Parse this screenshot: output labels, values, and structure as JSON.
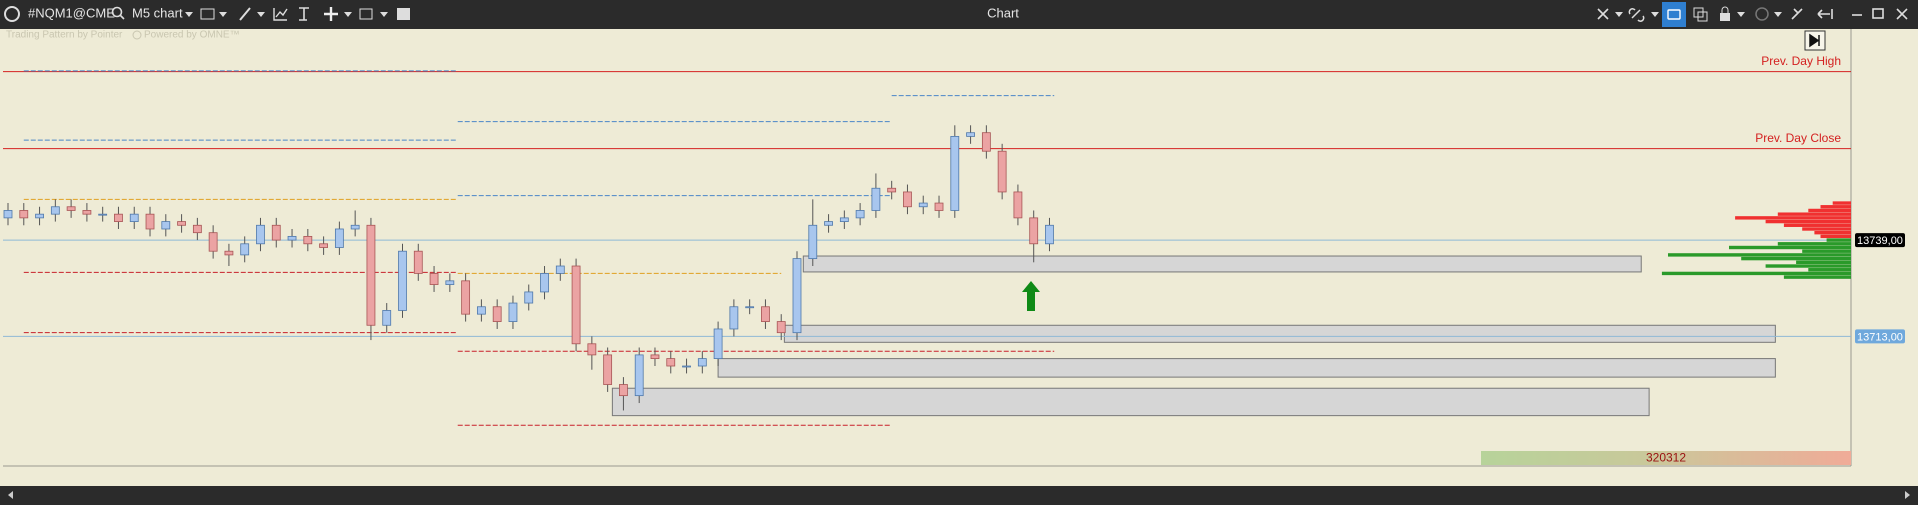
{
  "window": {
    "symbol": "#NQM1@CME",
    "timeframe": "M5 chart",
    "title": "Chart",
    "watermark": [
      "Trading Pattern by Pointer",
      "Powered by OMNE™"
    ]
  },
  "chart_data": {
    "type": "candlestick",
    "ylim": [
      13678,
      13796
    ],
    "open": [
      13745,
      13747,
      13745,
      13746,
      13748,
      13747,
      13746,
      13746,
      13744,
      13746,
      13742,
      13744,
      13743,
      13741,
      13736,
      13735,
      13738,
      13743,
      13739,
      13740,
      13738,
      13737,
      13742,
      13743,
      13716,
      13720,
      13736,
      13730,
      13727,
      13728,
      13719,
      13721,
      13717,
      13722,
      13725,
      13730,
      13732,
      13711,
      13708,
      13700,
      13697,
      13708,
      13707,
      13705,
      13705,
      13707,
      13715,
      13721,
      13721,
      13717,
      13714,
      13734,
      13743,
      13744,
      13745,
      13747,
      13753,
      13752,
      13748,
      13749,
      13747,
      13767,
      13768,
      13763,
      13752,
      13745,
      13738
    ],
    "high": [
      13749,
      13749,
      13748,
      13750,
      13750,
      13749,
      13748,
      13748,
      13748,
      13748,
      13746,
      13746,
      13745,
      13743,
      13738,
      13740,
      13745,
      13745,
      13742,
      13742,
      13740,
      13744,
      13747,
      13745,
      13722,
      13738,
      13738,
      13732,
      13730,
      13730,
      13723,
      13723,
      13724,
      13727,
      13732,
      13734,
      13734,
      13713,
      13710,
      13702,
      13710,
      13710,
      13709,
      13707,
      13709,
      13717,
      13723,
      13723,
      13723,
      13719,
      13736,
      13750,
      13746,
      13747,
      13749,
      13757,
      13755,
      13754,
      13751,
      13751,
      13770,
      13770,
      13770,
      13765,
      13754,
      13747,
      13745
    ],
    "low": [
      13743,
      13743,
      13743,
      13744,
      13745,
      13744,
      13744,
      13742,
      13742,
      13740,
      13740,
      13741,
      13739,
      13734,
      13732,
      13733,
      13736,
      13737,
      13737,
      13736,
      13735,
      13735,
      13740,
      13712,
      13714,
      13718,
      13728,
      13725,
      13725,
      13717,
      13717,
      13715,
      13715,
      13720,
      13723,
      13728,
      13709,
      13704,
      13698,
      13693,
      13695,
      13705,
      13703,
      13703,
      13703,
      13705,
      13713,
      13719,
      13715,
      13712,
      13712,
      13732,
      13741,
      13742,
      13743,
      13745,
      13750,
      13746,
      13746,
      13745,
      13745,
      13765,
      13761,
      13750,
      13743,
      13733,
      13736
    ],
    "close": [
      13747,
      13745,
      13746,
      13748,
      13747,
      13746,
      13746,
      13744,
      13746,
      13742,
      13744,
      13743,
      13741,
      13736,
      13735,
      13738,
      13743,
      13739,
      13740,
      13738,
      13737,
      13742,
      13743,
      13716,
      13720,
      13736,
      13730,
      13727,
      13728,
      13719,
      13721,
      13717,
      13722,
      13725,
      13730,
      13732,
      13711,
      13708,
      13700,
      13697,
      13708,
      13707,
      13705,
      13705,
      13707,
      13715,
      13721,
      13721,
      13717,
      13714,
      13734,
      13743,
      13744,
      13745,
      13747,
      13753,
      13752,
      13748,
      13749,
      13747,
      13767,
      13768,
      13763,
      13752,
      13745,
      13738,
      13743
    ],
    "up_color": "#a8c6ee",
    "down_color": "#eba3a3",
    "levels": [
      {
        "label": "Prev. Day High",
        "value": 13784.5,
        "color": "#d42020"
      },
      {
        "label": "Prev. Day Close",
        "value": 13763.7,
        "color": "#d42020"
      }
    ],
    "dashed_levels": [
      {
        "value": 13784.7,
        "from": 1,
        "to": 28.5,
        "color": "#4a86c8"
      },
      {
        "value": 13766,
        "from": 1,
        "to": 28.5,
        "color": "#4a86c8"
      },
      {
        "value": 13771,
        "from": 28.5,
        "to": 56,
        "color": "#4a86c8"
      },
      {
        "value": 13778,
        "from": 56,
        "to": 66.3,
        "color": "#4a86c8"
      },
      {
        "value": 13751,
        "from": 28.5,
        "to": 56,
        "color": "#4a86c8"
      },
      {
        "value": 13750,
        "from": 1,
        "to": 28.5,
        "color": "#e0a020"
      },
      {
        "value": 13730,
        "from": 28.5,
        "to": 49,
        "color": "#e0a020"
      },
      {
        "value": 13730.3,
        "from": 1,
        "to": 28.5,
        "color": "#c8202a"
      },
      {
        "value": 13714,
        "from": 1,
        "to": 28.5,
        "color": "#c8202a"
      },
      {
        "value": 13709,
        "from": 28.5,
        "to": 66.3,
        "color": "#c8202a"
      },
      {
        "value": 13689,
        "from": 28.5,
        "to": 56,
        "color": "#c8202a"
      }
    ],
    "zones": [
      {
        "top": 13734.7,
        "bottom": 13730.4,
        "from": 50.4,
        "to": 103.5
      },
      {
        "top": 13716,
        "bottom": 13711.4,
        "from": 49.2,
        "to": 112
      },
      {
        "top": 13707,
        "bottom": 13702,
        "from": 45,
        "to": 112
      },
      {
        "top": 13699,
        "bottom": 13691.6,
        "from": 38.3,
        "to": 104
      }
    ],
    "price_lines": [
      {
        "value": 13739,
        "label": "13739,00",
        "color": "#000000"
      },
      {
        "value": 13713,
        "label": "13713,00",
        "color": "#6fa8dc"
      }
    ],
    "volume_profile": [
      {
        "color": "#f03030",
        "prices": [
          13749,
          13748,
          13747,
          13746,
          13745,
          13744,
          13743,
          13742,
          13741,
          13740
        ],
        "values": [
          15,
          25,
          35,
          60,
          95,
          70,
          55,
          40,
          30,
          25
        ]
      },
      {
        "color": "#2a9a2a",
        "prices": [
          13739,
          13738,
          13737,
          13736,
          13735,
          13734,
          13733,
          13732,
          13731,
          13730,
          13729
        ],
        "values": [
          20,
          60,
          100,
          40,
          150,
          90,
          45,
          70,
          35,
          155,
          55
        ]
      }
    ],
    "footer_value": 320312
  }
}
